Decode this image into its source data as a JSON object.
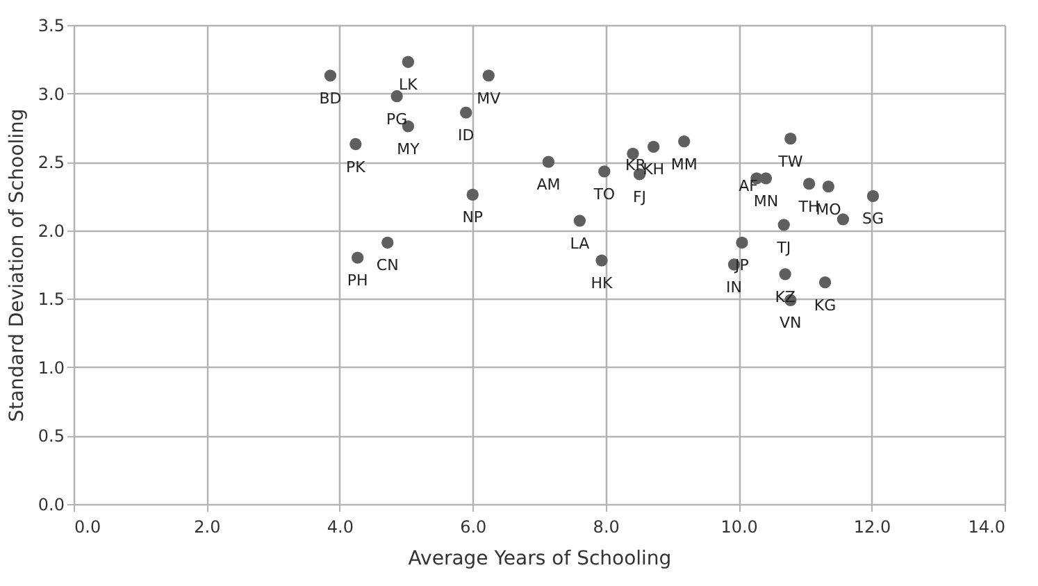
{
  "chart_data": {
    "type": "scatter",
    "xlabel": "Average Years of Schooling",
    "ylabel": "Standard Deviation of Schooling",
    "x": [
      3.86,
      5.03,
      4.86,
      5.03,
      6.24,
      5.9,
      4.24,
      6.0,
      4.72,
      4.27,
      7.14,
      7.98,
      8.41,
      8.72,
      8.51,
      9.18,
      7.61,
      7.94,
      9.93,
      10.05,
      10.78,
      10.27,
      10.41,
      11.06,
      11.35,
      12.02,
      11.57,
      10.68,
      10.7,
      11.3,
      10.78
    ],
    "series": [
      {
        "color": "#5f5f5f",
        "values": [
          3.13,
          3.23,
          2.98,
          2.76,
          3.13,
          2.86,
          2.63,
          2.26,
          1.91,
          1.8,
          2.5,
          2.43,
          2.56,
          2.61,
          2.41,
          2.65,
          2.07,
          1.78,
          1.75,
          1.91,
          2.67,
          2.38,
          2.38,
          2.34,
          2.32,
          2.25,
          2.08,
          2.04,
          1.68,
          1.62,
          1.49
        ]
      }
    ],
    "marker": "circle",
    "grid": true,
    "xlim": [
      0,
      14
    ],
    "xticks": [
      {
        "value": 0,
        "label": "0.0"
      },
      {
        "value": 2,
        "label": "2.0"
      },
      {
        "value": 4,
        "label": "4.0"
      },
      {
        "value": 6,
        "label": "6.0"
      },
      {
        "value": 8,
        "label": "8.0"
      },
      {
        "value": 10,
        "label": "10.0"
      },
      {
        "value": 12,
        "label": "12.0"
      },
      {
        "value": 14,
        "label": "14.0"
      }
    ],
    "ylim": [
      0,
      3.5
    ],
    "yticks": [
      {
        "value": 0,
        "label": "0.0"
      },
      {
        "value": 0.5,
        "label": "0.5"
      },
      {
        "value": 1,
        "label": "1.0"
      },
      {
        "value": 1.5,
        "label": "1.5"
      },
      {
        "value": 2,
        "label": "2.0"
      },
      {
        "value": 2.5,
        "label": "2.5"
      },
      {
        "value": 3,
        "label": "3.0"
      },
      {
        "value": 3.5,
        "label": "3.5"
      }
    ],
    "annotations": [
      {
        "text": "BD",
        "x": 3.86,
        "y": 3.13
      },
      {
        "text": "LK",
        "x": 5.03,
        "y": 3.23
      },
      {
        "text": "PG",
        "x": 4.86,
        "y": 2.98
      },
      {
        "text": "MY",
        "x": 5.03,
        "y": 2.76
      },
      {
        "text": "MV",
        "x": 6.24,
        "y": 3.13
      },
      {
        "text": "ID",
        "x": 5.9,
        "y": 2.86
      },
      {
        "text": "PK",
        "x": 4.24,
        "y": 2.63
      },
      {
        "text": "NP",
        "x": 6.0,
        "y": 2.26
      },
      {
        "text": "CN",
        "x": 4.72,
        "y": 1.91
      },
      {
        "text": "PH",
        "x": 4.27,
        "y": 1.8
      },
      {
        "text": "AM",
        "x": 7.14,
        "y": 2.5
      },
      {
        "text": "TO",
        "x": 7.98,
        "y": 2.43
      },
      {
        "text": "KR",
        "x": 8.41,
        "y": 2.56
      },
      {
        "text": "KH",
        "x": 8.72,
        "y": 2.61
      },
      {
        "text": "FJ",
        "x": 8.51,
        "y": 2.41
      },
      {
        "text": "MM",
        "x": 9.18,
        "y": 2.65
      },
      {
        "text": "LA",
        "x": 7.61,
        "y": 2.07
      },
      {
        "text": "HK",
        "x": 7.94,
        "y": 1.78
      },
      {
        "text": "IN",
        "x": 9.93,
        "y": 1.75
      },
      {
        "text": "JP",
        "x": 10.05,
        "y": 1.91
      },
      {
        "text": "TW",
        "x": 10.78,
        "y": 2.67
      },
      {
        "text": "AF",
        "x": 10.27,
        "y": 2.38
      },
      {
        "text": "MN",
        "x": 10.41,
        "y": 2.38
      },
      {
        "text": "TH",
        "x": 11.06,
        "y": 2.34
      },
      {
        "text": "MO",
        "x": 11.35,
        "y": 2.32
      },
      {
        "text": "SG",
        "x": 12.02,
        "y": 2.25
      },
      {
        "text": "TJ",
        "x": 10.68,
        "y": 2.04
      },
      {
        "text": "KZ",
        "x": 10.7,
        "y": 1.68
      },
      {
        "text": "KG",
        "x": 11.3,
        "y": 1.62
      },
      {
        "text": "VN",
        "x": 10.78,
        "y": 1.49
      }
    ]
  }
}
